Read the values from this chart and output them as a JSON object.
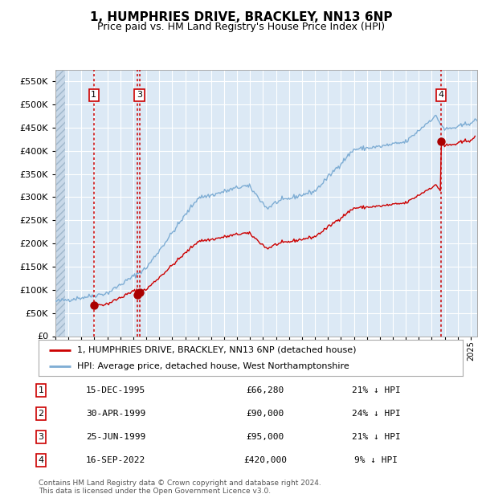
{
  "title": "1, HUMPHRIES DRIVE, BRACKLEY, NN13 6NP",
  "subtitle": "Price paid vs. HM Land Registry's House Price Index (HPI)",
  "footer": "Contains HM Land Registry data © Crown copyright and database right 2024.\nThis data is licensed under the Open Government Licence v3.0.",
  "legend_red": "1, HUMPHRIES DRIVE, BRACKLEY, NN13 6NP (detached house)",
  "legend_blue": "HPI: Average price, detached house, West Northamptonshire",
  "transactions": [
    {
      "num": 1,
      "date_label": "15-DEC-1995",
      "price": 66280,
      "pct": "21% ↓ HPI",
      "year": 1995.96
    },
    {
      "num": 2,
      "date_label": "30-APR-1999",
      "price": 90000,
      "pct": "24% ↓ HPI",
      "year": 1999.33
    },
    {
      "num": 3,
      "date_label": "25-JUN-1999",
      "price": 95000,
      "pct": "21% ↓ HPI",
      "year": 1999.48
    },
    {
      "num": 4,
      "date_label": "16-SEP-2022",
      "price": 420000,
      "pct": "9% ↓ HPI",
      "year": 2022.71
    }
  ],
  "plot_bg_color": "#dce9f5",
  "red_line_color": "#cc0000",
  "blue_line_color": "#7eadd4",
  "grid_color": "#ffffff",
  "vline_color": "#cc0000",
  "marker_color": "#aa0000",
  "box_edge_color": "#cc0000",
  "ylim": [
    0,
    575000
  ],
  "yticks": [
    0,
    50000,
    100000,
    150000,
    200000,
    250000,
    300000,
    350000,
    400000,
    450000,
    500000,
    550000
  ],
  "xmin": 1993.0,
  "xmax": 2025.5,
  "hatch_end": 1993.75,
  "box_nums_years": {
    "1": 1995.96,
    "3": 1999.48,
    "4": 2022.71
  },
  "show_marker_2": false
}
